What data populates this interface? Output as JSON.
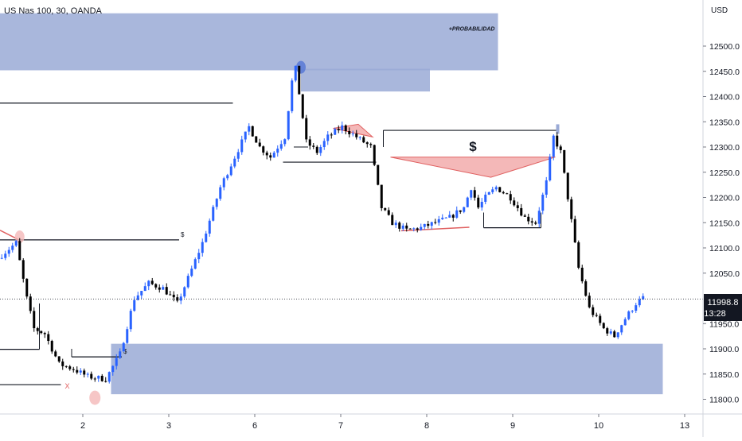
{
  "header": {
    "symbol_title": "US Nas 100, 30, OANDA",
    "currency": "USD"
  },
  "chart_data": {
    "type": "candlestick",
    "title": "US Nas 100, 30, OANDA",
    "ylabel": "USD",
    "ylim": [
      11781,
      12565
    ],
    "y_ticks": [
      12500,
      12450,
      12400,
      12350,
      12300,
      12250,
      12200,
      12150,
      12100,
      12050,
      11950,
      11900,
      11850,
      11800
    ],
    "y_tick_labels": [
      "12500.0",
      "12450.0",
      "12400.0",
      "12350.0",
      "12300.0",
      "12250.0",
      "12200.0",
      "12150.0",
      "12100.0",
      "12050.0",
      "11950.0",
      "11900.0",
      "11850.0",
      "11800.0"
    ],
    "x_ticks": [
      {
        "label": "2",
        "bar": 26
      },
      {
        "label": "3",
        "bar": 50
      },
      {
        "label": "6",
        "bar": 74
      },
      {
        "label": "7",
        "bar": 98
      },
      {
        "label": "8",
        "bar": 122
      },
      {
        "label": "9",
        "bar": 146
      },
      {
        "label": "10",
        "bar": 170
      },
      {
        "label": "13",
        "bar": 194
      }
    ],
    "price_label": {
      "value": "11998.8",
      "countdown": "13:28"
    },
    "price_keys": [
      [
        0,
        12080
      ],
      [
        5,
        12110
      ],
      [
        8,
        12000
      ],
      [
        10,
        11940
      ],
      [
        13,
        11930
      ],
      [
        17,
        11870
      ],
      [
        21,
        11860
      ],
      [
        25,
        11845
      ],
      [
        30,
        11840
      ],
      [
        34,
        11890
      ],
      [
        38,
        12000
      ],
      [
        42,
        12030
      ],
      [
        46,
        12020
      ],
      [
        50,
        11990
      ],
      [
        53,
        12040
      ],
      [
        57,
        12110
      ],
      [
        62,
        12220
      ],
      [
        66,
        12280
      ],
      [
        70,
        12340
      ],
      [
        73,
        12300
      ],
      [
        76,
        12280
      ],
      [
        80,
        12320
      ],
      [
        82,
        12430
      ],
      [
        83,
        12455
      ],
      [
        86,
        12310
      ],
      [
        89,
        12290
      ],
      [
        92,
        12320
      ],
      [
        96,
        12340
      ],
      [
        100,
        12320
      ],
      [
        104,
        12300
      ],
      [
        107,
        12180
      ],
      [
        110,
        12150
      ],
      [
        114,
        12135
      ],
      [
        118,
        12140
      ],
      [
        122,
        12150
      ],
      [
        126,
        12160
      ],
      [
        130,
        12180
      ],
      [
        132,
        12220
      ],
      [
        134,
        12180
      ],
      [
        136,
        12200
      ],
      [
        139,
        12220
      ],
      [
        143,
        12200
      ],
      [
        147,
        12160
      ],
      [
        150,
        12150
      ],
      [
        153,
        12230
      ],
      [
        155,
        12320
      ],
      [
        157,
        12290
      ],
      [
        159,
        12200
      ],
      [
        162,
        12060
      ],
      [
        165,
        11980
      ],
      [
        169,
        11940
      ],
      [
        172,
        11925
      ],
      [
        175,
        11960
      ],
      [
        178,
        11990
      ],
      [
        180,
        12000
      ]
    ],
    "zones": [
      {
        "from_bar": 0,
        "to_bar": 139,
        "y1": 12452,
        "y2": 12565,
        "label": "+PROBABILIDAD",
        "color": "#9aaad6"
      },
      {
        "from_bar": 84,
        "to_bar": 120,
        "y1": 12410,
        "y2": 12455,
        "label": "",
        "color": "#9aaad6"
      },
      {
        "from_bar": 31,
        "to_bar": 185,
        "y1": 11810,
        "y2": 11910,
        "label": "",
        "color": "#9aaad6"
      }
    ],
    "levels": [
      {
        "from_bar": 0,
        "to_bar": 65,
        "y": 12387,
        "label": ""
      },
      {
        "from_bar": 0,
        "to_bar": 50,
        "y": 12116,
        "label": "$"
      },
      {
        "from_bar": 0,
        "to_bar": 11,
        "y": 11899,
        "label": ""
      },
      {
        "from_bar": 0,
        "to_bar": 17,
        "y": 11829,
        "label": "X"
      },
      {
        "from_bar": 20,
        "to_bar": 34,
        "y": 11884,
        "label": "$"
      },
      {
        "from_bar": 79,
        "to_bar": 105,
        "y": 12270,
        "label": ""
      },
      {
        "from_bar": 107,
        "to_bar": 156,
        "y": 12333,
        "label": ""
      },
      {
        "from_bar": 135,
        "to_bar": 151,
        "y": 12140,
        "label": ""
      }
    ],
    "annotation_label": "$",
    "grid": false,
    "up_color": "#2962ff",
    "down_color": "#000000",
    "zone_color": "#9aaad6",
    "triangle_color": "#f4b8b8",
    "line_color": "#e06060"
  }
}
